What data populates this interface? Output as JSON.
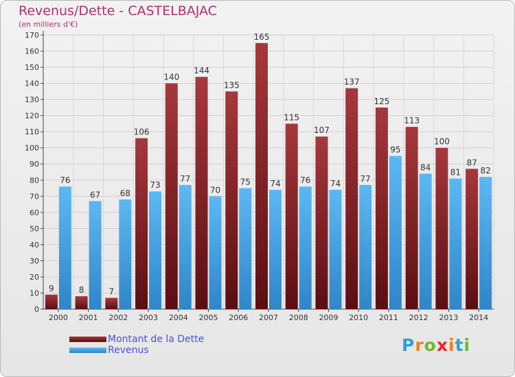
{
  "title": "Revenus/Dette - CASTELBAJAC",
  "subtitle": "(en milliers d'€)",
  "logo": {
    "letters": [
      "P",
      "r",
      "o",
      "x",
      "i",
      "t",
      "i"
    ],
    "colors": [
      "#2f9fd9",
      "#f07e1a",
      "#6cba2c",
      "#e8262a",
      "#f07e1a",
      "#2f9fd9",
      "#6cba2c"
    ]
  },
  "chart_data": {
    "type": "bar",
    "title": "Revenus/Dette - CASTELBAJAC",
    "ylabel": "(en milliers d'€)",
    "xlabel": "",
    "ylim": [
      0,
      170
    ],
    "yticks": [
      0,
      10,
      20,
      30,
      40,
      50,
      60,
      70,
      80,
      90,
      100,
      110,
      120,
      130,
      140,
      150,
      160,
      170
    ],
    "grid": true,
    "legend_position": "bottom-left",
    "categories": [
      "2000",
      "2001",
      "2002",
      "2003",
      "2004",
      "2005",
      "2006",
      "2007",
      "2008",
      "2009",
      "2010",
      "2011",
      "2012",
      "2013",
      "2014"
    ],
    "series": [
      {
        "name": "Montant de la Dette",
        "color": "#7a1a1e",
        "values": [
          9,
          8,
          7,
          106,
          140,
          144,
          135,
          165,
          115,
          107,
          137,
          125,
          113,
          100,
          87
        ]
      },
      {
        "name": "Revenus",
        "color": "#4aa6e6",
        "values": [
          76,
          67,
          68,
          73,
          77,
          70,
          75,
          74,
          76,
          74,
          77,
          95,
          84,
          81,
          82
        ]
      }
    ]
  }
}
